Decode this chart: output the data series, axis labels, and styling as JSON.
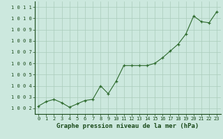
{
  "x": [
    0,
    1,
    2,
    3,
    4,
    5,
    6,
    7,
    8,
    9,
    10,
    11,
    12,
    13,
    14,
    15,
    16,
    17,
    18,
    19,
    20,
    21,
    22,
    23
  ],
  "y": [
    1002.2,
    1002.6,
    1002.8,
    1002.5,
    1002.1,
    1002.4,
    1002.7,
    1002.8,
    1004.0,
    1003.3,
    1004.4,
    1005.8,
    1005.8,
    1005.8,
    1005.8,
    1006.0,
    1006.5,
    1007.1,
    1007.7,
    1008.6,
    1010.2,
    1009.7,
    1009.6,
    1010.6
  ],
  "line_color": "#2d6a2d",
  "marker_color": "#2d6a2d",
  "bg_color": "#cce8de",
  "grid_color": "#aaccbb",
  "xlabel": "Graphe pression niveau de la mer (hPa)",
  "ylim": [
    1001.5,
    1011.5
  ],
  "xlim": [
    -0.5,
    23.5
  ],
  "yticks": [
    1002,
    1003,
    1004,
    1005,
    1006,
    1007,
    1008,
    1009,
    1010,
    1011
  ],
  "xticks": [
    0,
    1,
    2,
    3,
    4,
    5,
    6,
    7,
    8,
    9,
    10,
    11,
    12,
    13,
    14,
    15,
    16,
    17,
    18,
    19,
    20,
    21,
    22,
    23
  ],
  "tick_fontsize": 5.0,
  "xlabel_fontsize": 6.5,
  "marker_size": 3.0,
  "line_width": 0.8
}
